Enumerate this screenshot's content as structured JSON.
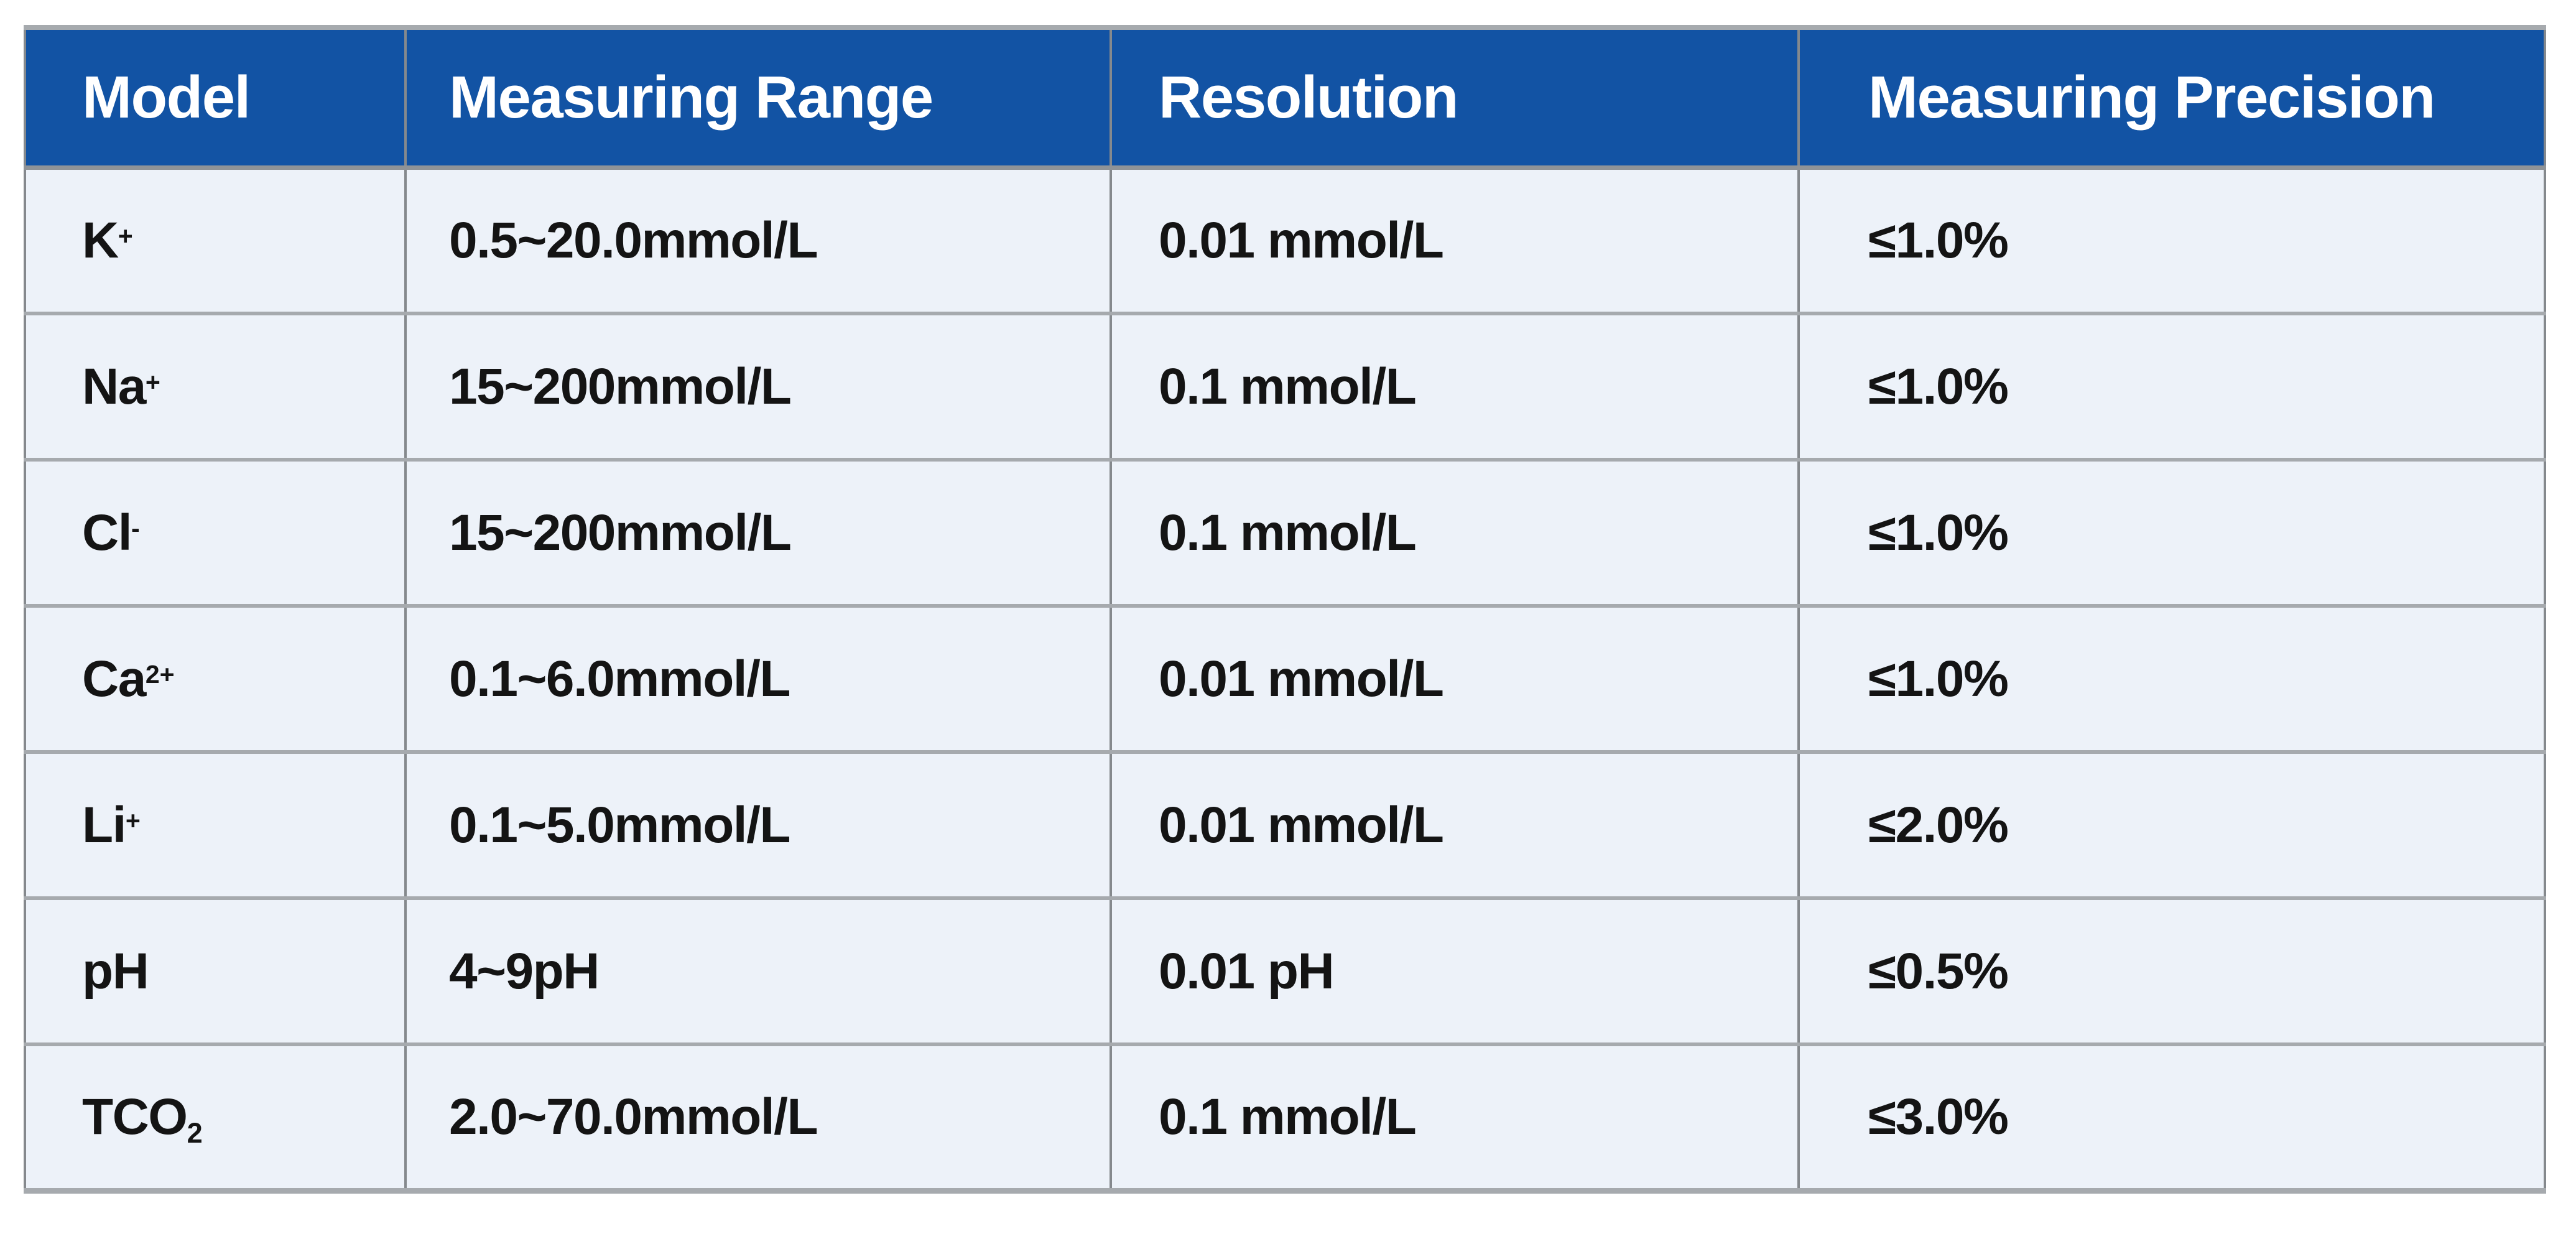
{
  "page": {
    "background": "#ffffff"
  },
  "table": {
    "columns": [
      "Model",
      "Measuring Range",
      "Resolution",
      "Measuring Precision"
    ],
    "rows": [
      {
        "model": {
          "base": "K",
          "script": "+",
          "script_pos": "sup"
        },
        "measuring_range": "0.5~20.0mmol/L",
        "resolution": "0.01 mmol/L",
        "measuring_precision": "≤1.0%"
      },
      {
        "model": {
          "base": "Na",
          "script": "+",
          "script_pos": "sup"
        },
        "measuring_range": "15~200mmol/L",
        "resolution": "0.1 mmol/L",
        "measuring_precision": "≤1.0%"
      },
      {
        "model": {
          "base": "Cl",
          "script": "-",
          "script_pos": "sup"
        },
        "measuring_range": "15~200mmol/L",
        "resolution": "0.1 mmol/L",
        "measuring_precision": "≤1.0%"
      },
      {
        "model": {
          "base": "Ca",
          "script": "2+",
          "script_pos": "sup"
        },
        "measuring_range": "0.1~6.0mmol/L",
        "resolution": "0.01 mmol/L",
        "measuring_precision": "≤1.0%"
      },
      {
        "model": {
          "base": "Li",
          "script": "+",
          "script_pos": "sup"
        },
        "measuring_range": "0.1~5.0mmol/L",
        "resolution": "0.01 mmol/L",
        "measuring_precision": "≤2.0%"
      },
      {
        "model": {
          "base": "pH",
          "script": "",
          "script_pos": ""
        },
        "measuring_range": "4~9pH",
        "resolution": "0.01 pH",
        "measuring_precision": "≤0.5%"
      },
      {
        "model": {
          "base": "TCO",
          "script": "2",
          "script_pos": "sub"
        },
        "measuring_range": "2.0~70.0mmol/L",
        "resolution": "0.1 mmol/L",
        "measuring_precision": "≤3.0%"
      }
    ],
    "colors": {
      "header_bg": "#1253a4",
      "header_text": "#ffffff",
      "row_bg": "#edf2f9",
      "border_vertical": "#85898d",
      "border_horizontal": "#a6aaae",
      "header_border": "#8f9397",
      "text": "#141414",
      "page_bg": "#ffffff"
    }
  }
}
